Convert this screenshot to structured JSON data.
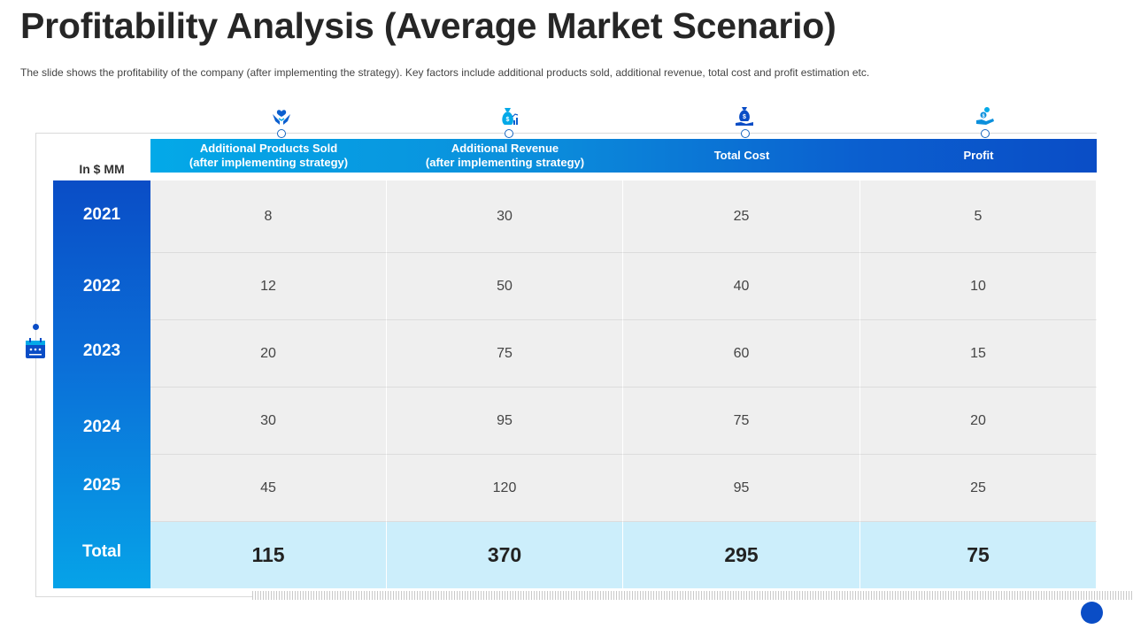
{
  "slide": {
    "title": "Profitability Analysis (Average Market Scenario)",
    "subtitle": "The slide shows the profitability of the company (after implementing the strategy). Key factors include additional products sold, additional revenue,  total cost and profit  estimation etc."
  },
  "table": {
    "unit_label": "In $ MM",
    "columns": [
      {
        "line1": "Additional Products  Sold",
        "line2": "(after implementing strategy)",
        "icon": "hands-care-icon"
      },
      {
        "line1": "Additional Revenue",
        "line2": "(after implementing strategy)",
        "icon": "money-bag-chart-icon"
      },
      {
        "line1": "Total Cost",
        "line2": "",
        "icon": "money-bag-hand-icon"
      },
      {
        "line1": "Profit",
        "line2": "",
        "icon": "hand-coins-icon"
      }
    ],
    "rows": [
      {
        "label": "2021",
        "values": [
          "8",
          "30",
          "25",
          "5"
        ]
      },
      {
        "label": "2022",
        "values": [
          "12",
          "50",
          "40",
          "10"
        ]
      },
      {
        "label": "2023",
        "values": [
          "20",
          "75",
          "60",
          "15"
        ]
      },
      {
        "label": "2024",
        "values": [
          "30",
          "95",
          "75",
          "20"
        ]
      },
      {
        "label": "2025",
        "values": [
          "45",
          "120",
          "95",
          "25"
        ]
      }
    ],
    "total": {
      "label": "Total",
      "values": [
        "115",
        "370",
        "295",
        "75"
      ]
    }
  },
  "colors": {
    "accent_dark": "#0a4dc6",
    "accent_light": "#03a9e8",
    "total_row_bg": "#cceefb",
    "cell_bg": "#efefef"
  },
  "side_icon": "calendar-icon"
}
